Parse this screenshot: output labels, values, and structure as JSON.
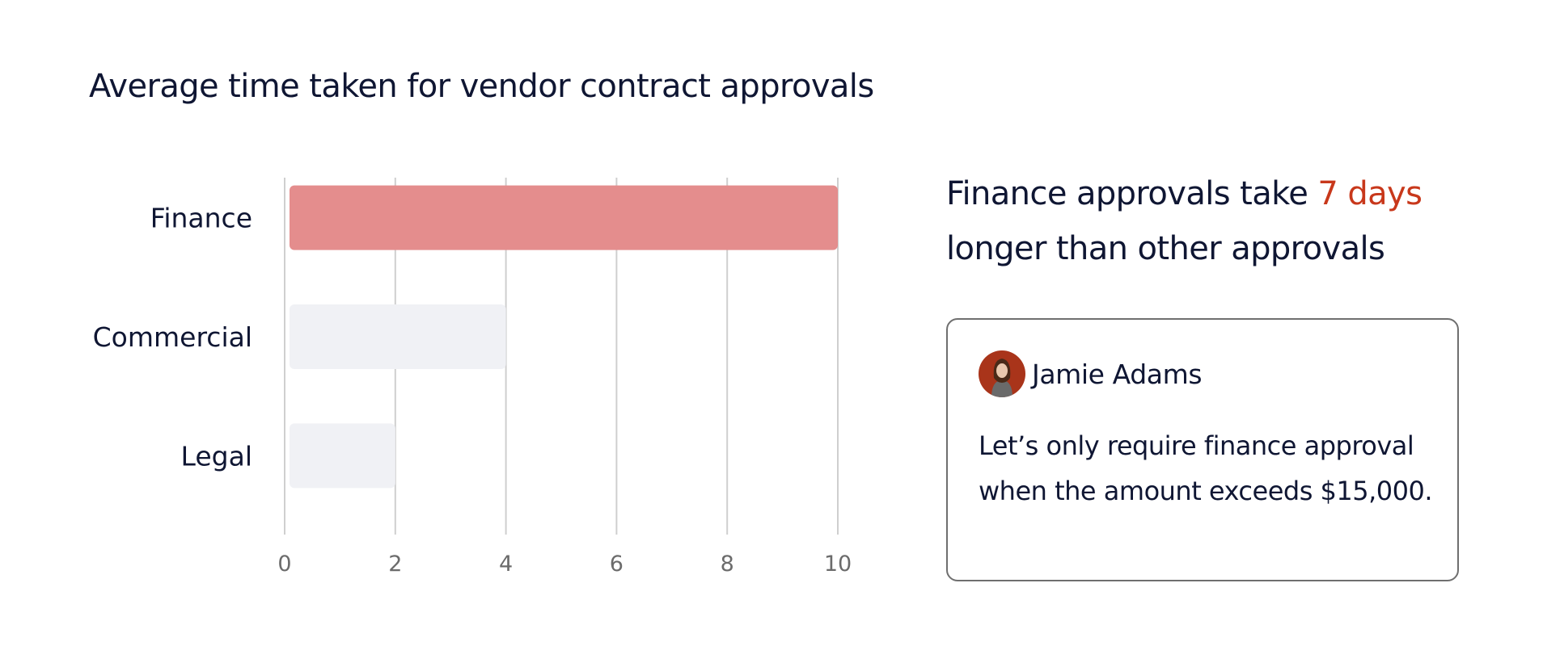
{
  "chart_data": {
    "type": "bar",
    "orientation": "horizontal",
    "title": "Average time taken for vendor contract approvals",
    "categories": [
      "Finance",
      "Commercial",
      "Legal"
    ],
    "values": [
      10,
      4,
      2
    ],
    "xlim": [
      0,
      10
    ],
    "ticks": [
      "0",
      "2",
      "4",
      "6",
      "8",
      "10"
    ],
    "grid": true,
    "highlight_color": "#e48d8d",
    "bar_color": "#f0f1f5"
  },
  "insight": {
    "prefix": "Finance approvals take ",
    "highlight": "7 days",
    "suffix": " longer than other approvals",
    "highlight_color": "#c8381b"
  },
  "comment": {
    "author": "Jamie Adams",
    "avatar_icon": "person-photo-icon",
    "text": "Let’s only require finance approval when the amount exceeds $15,000."
  }
}
